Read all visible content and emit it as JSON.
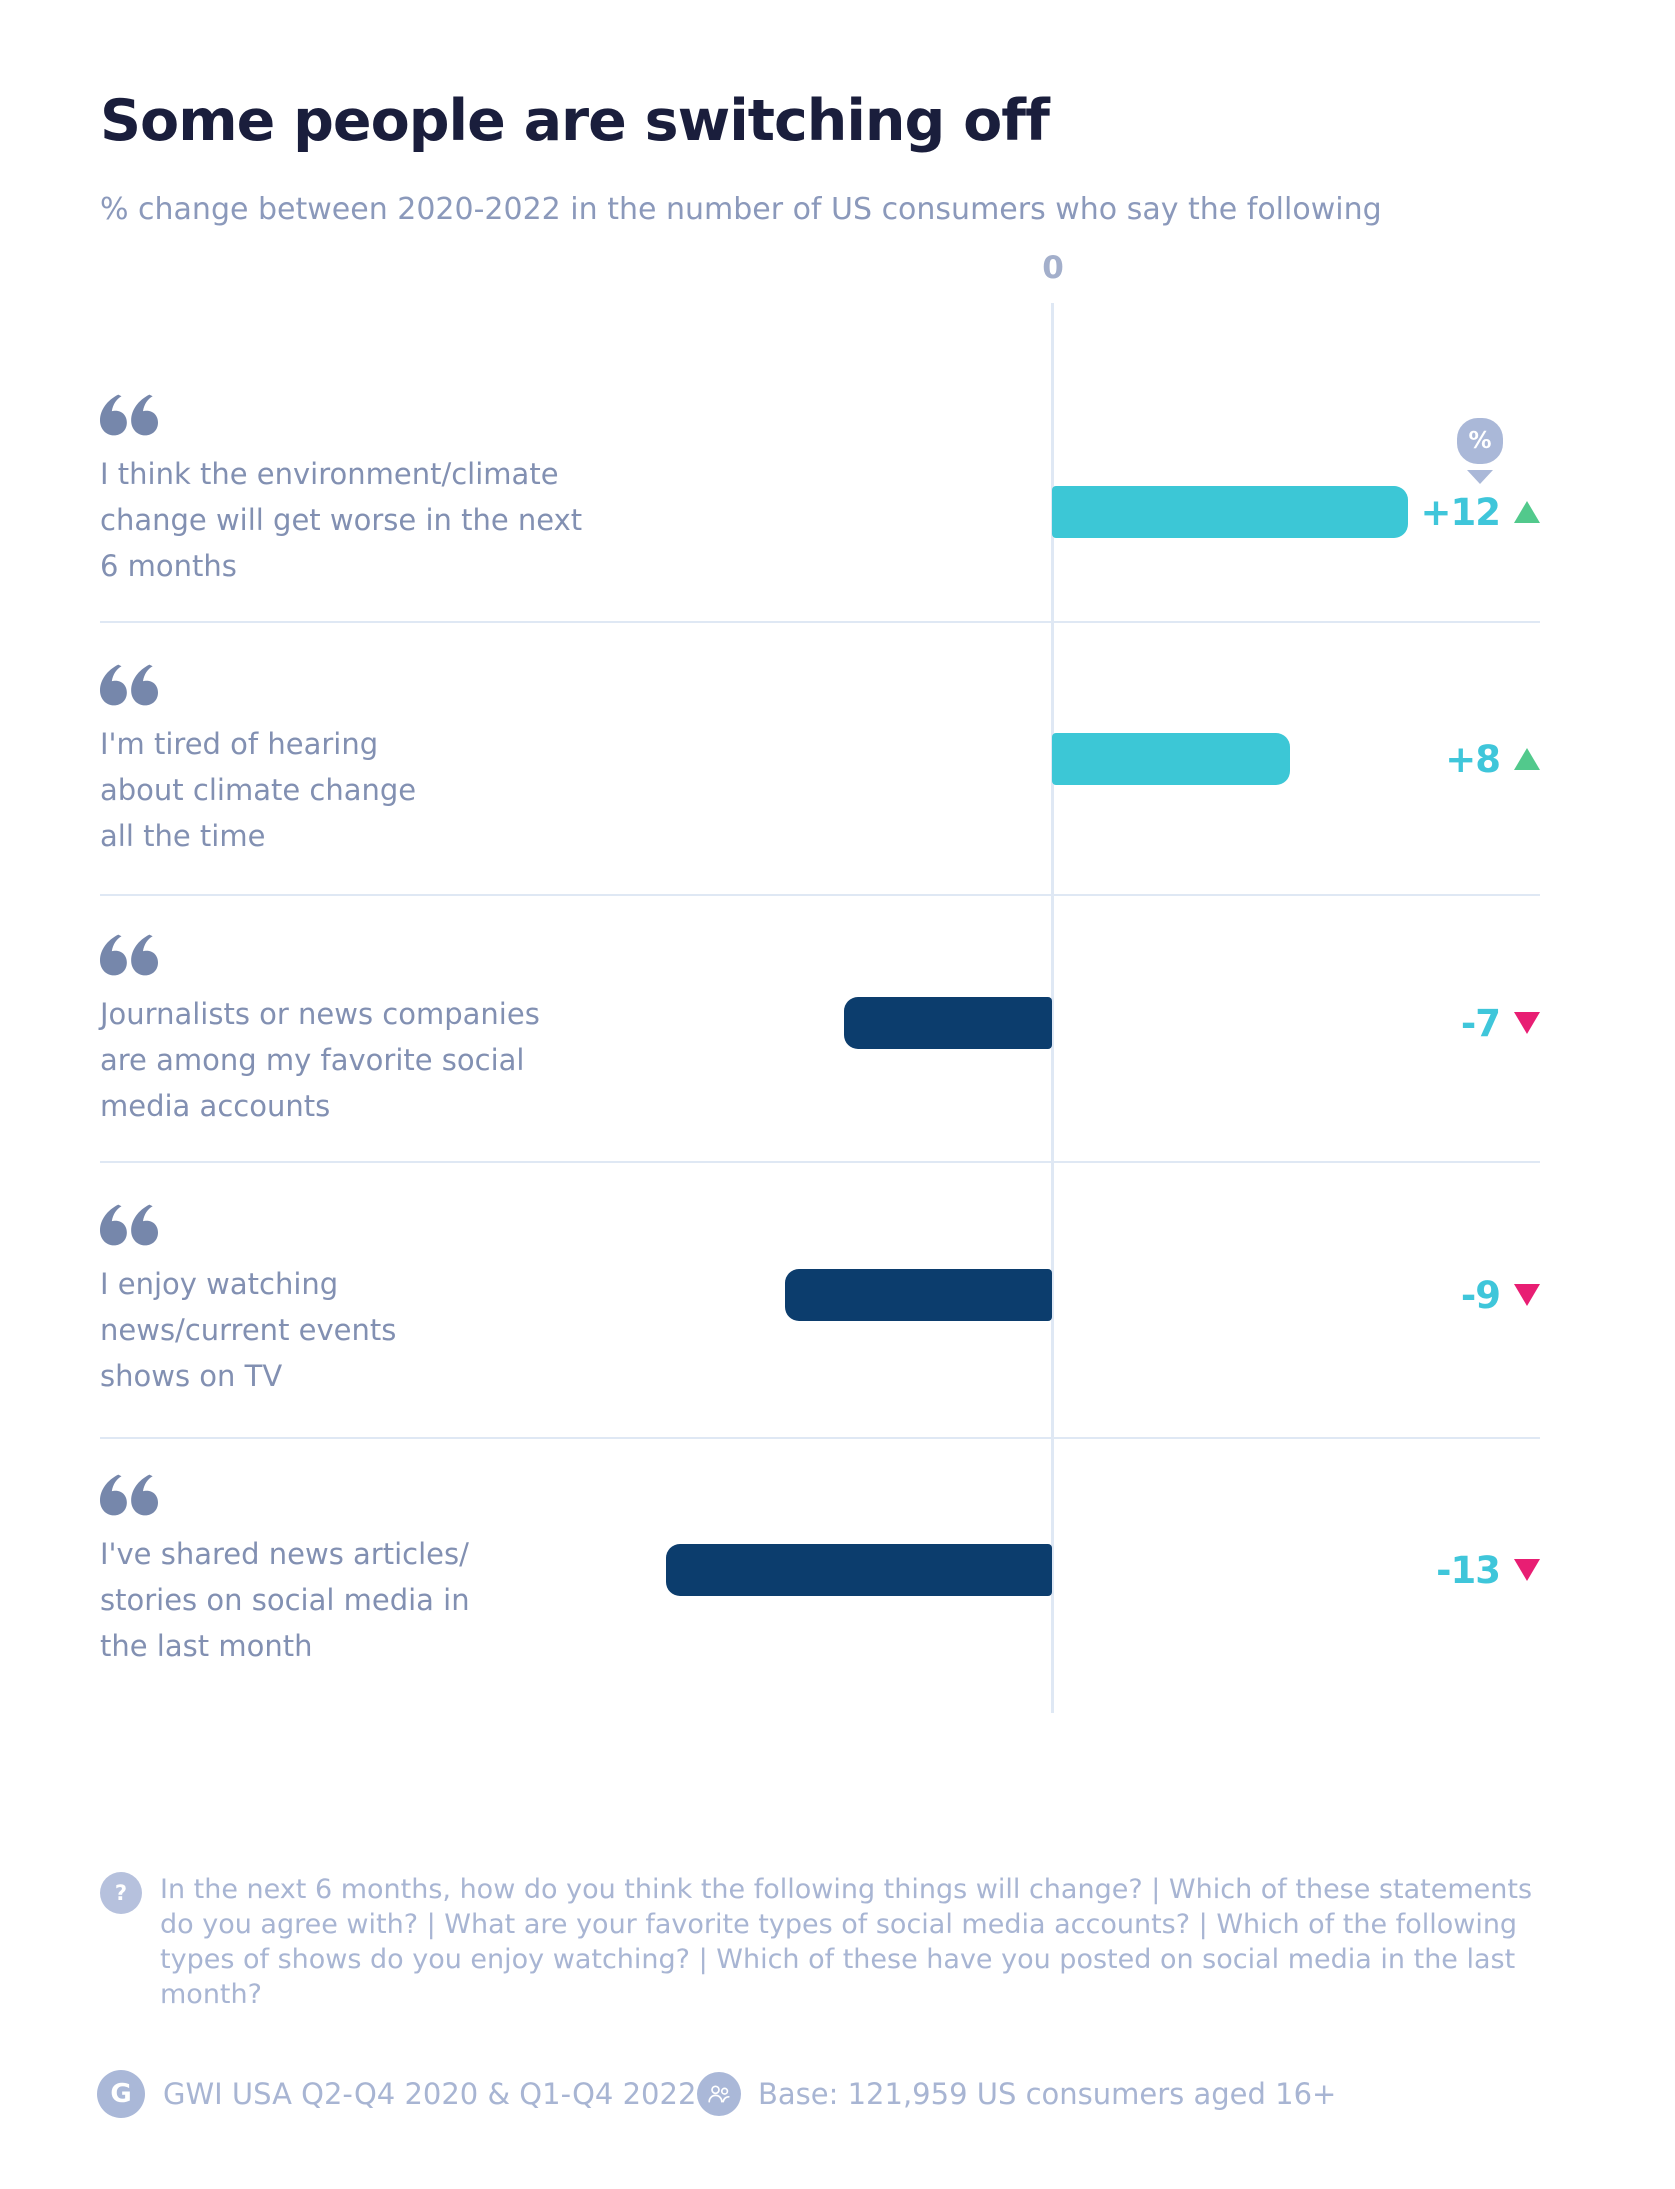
{
  "header": {
    "title": "Some people are switching off",
    "subtitle": "% change between 2020-2022 in the number of US consumers who say the following"
  },
  "chart_data": {
    "type": "bar",
    "orientation": "horizontal",
    "title": "Some people are switching off",
    "subtitle": "% change between 2020-2022 in the number of US consumers who say the following",
    "unit": "percentage point change 2020-2022",
    "axis_zero_label": "0",
    "xlim": [
      -14,
      14
    ],
    "grid": false,
    "categories": [
      "I think the environment/climate change will get worse in the next 6 months",
      "I'm tired of hearing about climate change all the time",
      "Journalists or news companies are among my favorite social media accounts",
      "I enjoy watching news/current events shows on TV",
      "I've shared news articles/stories on social media in the last month"
    ],
    "values": [
      12,
      8,
      -7,
      -9,
      -13
    ],
    "value_labels": [
      "+12",
      "+8",
      "-7",
      "-9",
      "-13"
    ],
    "bar_colors": [
      "#3cc7d6",
      "#3cc7d6",
      "#0c3d6d",
      "#0c3d6d",
      "#0c3d6d"
    ]
  },
  "rows": [
    {
      "lines": [
        "I think the environment/climate",
        "change will get worse in the next",
        "6 months"
      ],
      "value": 12,
      "value_label": "+12",
      "direction": "up"
    },
    {
      "lines": [
        "I'm tired of hearing",
        "about climate change",
        "all the time"
      ],
      "value": 8,
      "value_label": "+8",
      "direction": "up"
    },
    {
      "lines": [
        "Journalists or news companies",
        "are among my favorite social",
        "media accounts"
      ],
      "value": -7,
      "value_label": "-7",
      "direction": "down"
    },
    {
      "lines": [
        "I enjoy watching",
        "news/current events",
        "shows on TV"
      ],
      "value": -9,
      "value_label": "-9",
      "direction": "down"
    },
    {
      "lines": [
        "I've shared news articles/",
        "stories on social media in",
        "the last month"
      ],
      "value": -13,
      "value_label": "-13",
      "direction": "down"
    }
  ],
  "percent_pin": {
    "symbol": "%"
  },
  "question": {
    "icon_symbol": "?",
    "lines": [
      "In the next 6 months, how do you think the following things will change? | Which of these statements",
      "do you agree with? | What are your favorite types of social media accounts? | Which of the following",
      "types of shows do you enjoy watching? | Which of these have you posted on social media in the last month?"
    ]
  },
  "footer": {
    "logo_symbol": "G",
    "source": "GWI USA Q2-Q4 2020 & Q1-Q4 2022",
    "base": "Base: 121,959 US consumers aged 16+"
  },
  "colors": {
    "positive_bar": "#3cc7d6",
    "negative_bar": "#0c3d6d",
    "value_text": "#3fc6da",
    "up": "#52c98c",
    "down": "#e81e73",
    "title": "#1a1e3c",
    "label": "#8290b2",
    "quote": "#7687ab",
    "muted": "#a8b5d3",
    "icon_bg": "#aab8d8",
    "line": "#dfe8f4"
  }
}
